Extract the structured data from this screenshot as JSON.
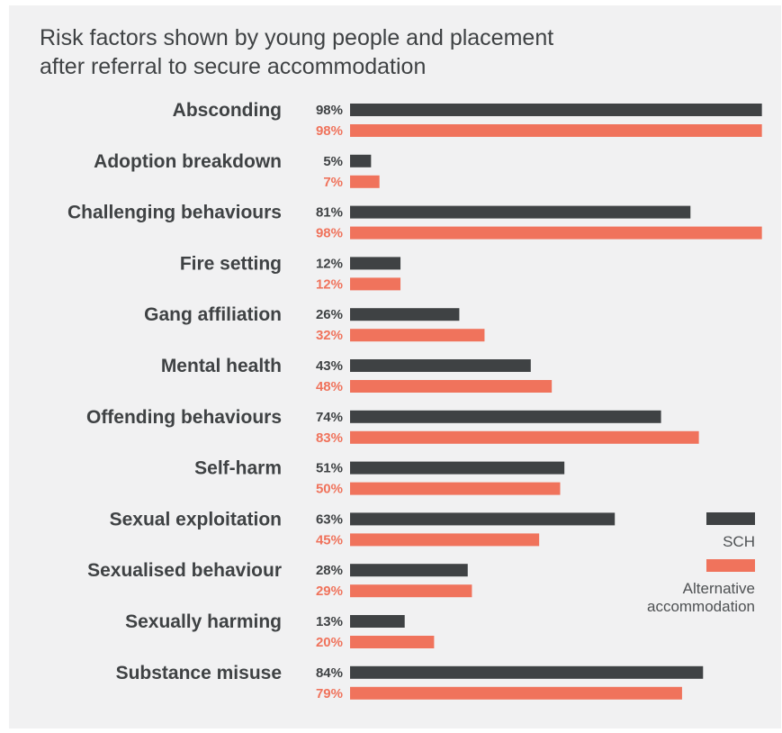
{
  "chart_data": {
    "type": "bar",
    "orientation": "horizontal",
    "title_lines": [
      "Risk factors shown by young people and placement",
      "after referral to secure accommodation"
    ],
    "categories": [
      "Absconding",
      "Adoption breakdown",
      "Challenging behaviours",
      "Fire setting",
      "Gang affiliation",
      "Mental health",
      "Offending behaviours",
      "Self-harm",
      "Sexual exploitation",
      "Sexualised behaviour",
      "Sexually harming",
      "Substance misuse"
    ],
    "series": [
      {
        "name": "SCH",
        "color": "#3f4244",
        "values": [
          98,
          5,
          81,
          12,
          26,
          43,
          74,
          51,
          63,
          28,
          13,
          84
        ],
        "labels": [
          "98%",
          "5%",
          "81%",
          "12%",
          "26%",
          "43%",
          "74%",
          "51%",
          "63%",
          "28%",
          "13%",
          "84%"
        ]
      },
      {
        "name": "Alternative accommodation",
        "color": "#f0735c",
        "values": [
          98,
          7,
          98,
          12,
          32,
          48,
          83,
          50,
          45,
          29,
          20,
          79
        ],
        "labels": [
          "98%",
          "7%",
          "98%",
          "12%",
          "32%",
          "48%",
          "83%",
          "50%",
          "45%",
          "29%",
          "20%",
          "79%"
        ]
      }
    ],
    "xlim": [
      0,
      100
    ],
    "grid": false,
    "legend_position": "bottom-right"
  },
  "legend": {
    "sch_label": "SCH",
    "alt_label": "Alternative accommodation"
  }
}
